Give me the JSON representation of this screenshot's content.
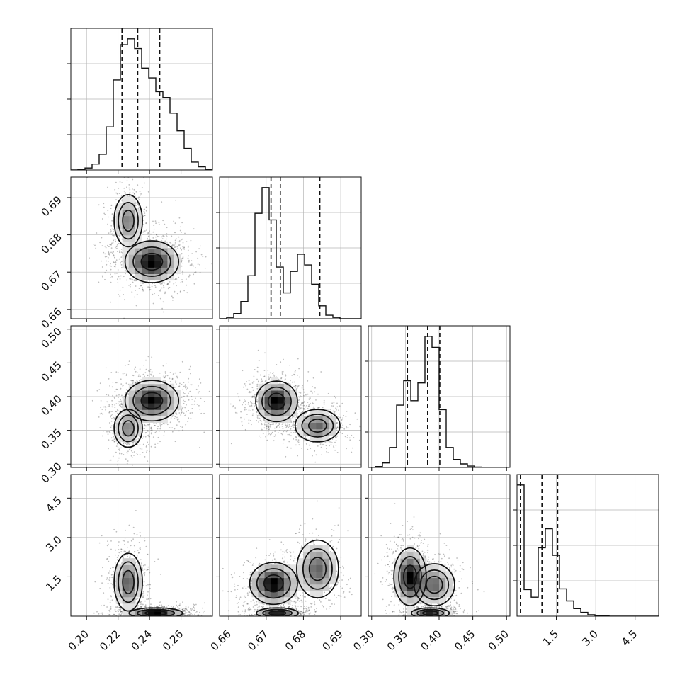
{
  "chart_data": {
    "type": "corner",
    "grid": true,
    "colors": {
      "ink": "#111111",
      "grid": "#b5b5b5",
      "density_dark": "#000000"
    },
    "parameters": [
      {
        "range": [
          0.19,
          0.28
        ],
        "ticks": [
          0.2,
          0.22,
          0.24,
          0.26
        ],
        "tick_labels": [
          "0.20",
          "0.22",
          "0.24",
          "0.26"
        ],
        "quantiles": [
          0.2225,
          0.2325,
          0.2465
        ]
      },
      {
        "range": [
          0.6575,
          0.6955
        ],
        "ticks": [
          0.66,
          0.67,
          0.68,
          0.69
        ],
        "tick_labels": [
          "0.66",
          "0.67",
          "0.68",
          "0.69"
        ],
        "quantiles": [
          0.6713,
          0.6738,
          0.6844
        ]
      },
      {
        "range": [
          0.295,
          0.505
        ],
        "ticks": [
          0.3,
          0.35,
          0.4,
          0.45,
          0.5
        ],
        "tick_labels": [
          "0.30",
          "0.35",
          "0.40",
          "0.45",
          "0.50"
        ],
        "quantiles": [
          0.353,
          0.383,
          0.401
        ]
      },
      {
        "range": [
          0.0,
          5.4
        ],
        "ticks": [
          1.5,
          3.0,
          4.5
        ],
        "tick_labels": [
          "1.5",
          "3.0",
          "4.5"
        ],
        "quantiles": [
          0.13,
          0.95,
          1.55
        ]
      }
    ],
    "histograms": [
      {
        "param": 0,
        "edges_from": 0.19,
        "bin_width": 0.0045,
        "counts": [
          0,
          2,
          5,
          15,
          40,
          110,
          230,
          320,
          335,
          310,
          260,
          235,
          200,
          185,
          145,
          100,
          55,
          20,
          8,
          2
        ]
      },
      {
        "param": 1,
        "edges_from": 0.6575,
        "bin_width": 0.0019,
        "counts": [
          0,
          3,
          12,
          40,
          100,
          245,
          305,
          230,
          120,
          60,
          110,
          150,
          125,
          80,
          30,
          8,
          3,
          0,
          0,
          0
        ]
      },
      {
        "param": 2,
        "edges_from": 0.295,
        "bin_width": 0.0105,
        "counts": [
          0,
          2,
          10,
          45,
          140,
          195,
          150,
          190,
          295,
          270,
          130,
          45,
          18,
          8,
          3,
          1,
          0,
          0,
          0,
          0
        ]
      },
      {
        "param": 3,
        "edges_from": 0.0,
        "bin_width": 0.27,
        "counts": [
          345,
          70,
          50,
          180,
          230,
          160,
          72,
          40,
          20,
          10,
          4,
          2,
          1,
          0,
          0,
          0,
          0,
          0,
          0,
          0
        ]
      }
    ],
    "scatter_clusters": [
      {
        "pair": [
          0,
          1
        ],
        "peaks": [
          {
            "cx": 0.2265,
            "cy": 0.6838,
            "sx": 0.0045,
            "sy": 0.0035,
            "w": 0.35
          },
          {
            "cx": 0.2415,
            "cy": 0.6728,
            "sx": 0.0085,
            "sy": 0.0028,
            "w": 0.65
          }
        ]
      },
      {
        "pair": [
          0,
          2
        ],
        "peaks": [
          {
            "cx": 0.2265,
            "cy": 0.353,
            "sx": 0.0045,
            "sy": 0.014,
            "w": 0.35
          },
          {
            "cx": 0.2415,
            "cy": 0.394,
            "sx": 0.0085,
            "sy": 0.015,
            "w": 0.65
          }
        ]
      },
      {
        "pair": [
          0,
          3
        ],
        "peaks": [
          {
            "cx": 0.2265,
            "cy": 1.3,
            "sx": 0.0045,
            "sy": 0.55,
            "w": 0.4
          },
          {
            "cx": 0.244,
            "cy": 0.12,
            "sx": 0.0085,
            "sy": 0.1,
            "w": 0.6
          }
        ]
      },
      {
        "pair": [
          1,
          2
        ],
        "peaks": [
          {
            "cx": 0.6728,
            "cy": 0.393,
            "sx": 0.0028,
            "sy": 0.015,
            "w": 0.62
          },
          {
            "cx": 0.6838,
            "cy": 0.357,
            "sx": 0.003,
            "sy": 0.012,
            "w": 0.38
          }
        ]
      },
      {
        "pair": [
          1,
          3
        ],
        "peaks": [
          {
            "cx": 0.672,
            "cy": 1.25,
            "sx": 0.0032,
            "sy": 0.4,
            "w": 0.4
          },
          {
            "cx": 0.6838,
            "cy": 1.8,
            "sx": 0.0028,
            "sy": 0.55,
            "w": 0.25
          },
          {
            "cx": 0.673,
            "cy": 0.12,
            "sx": 0.0028,
            "sy": 0.1,
            "w": 0.35
          }
        ]
      },
      {
        "pair": [
          2,
          3
        ],
        "peaks": [
          {
            "cx": 0.357,
            "cy": 1.5,
            "sx": 0.012,
            "sy": 0.55,
            "w": 0.4
          },
          {
            "cx": 0.393,
            "cy": 1.2,
            "sx": 0.015,
            "sy": 0.4,
            "w": 0.25
          },
          {
            "cx": 0.387,
            "cy": 0.12,
            "sx": 0.014,
            "sy": 0.1,
            "w": 0.35
          }
        ]
      }
    ]
  }
}
